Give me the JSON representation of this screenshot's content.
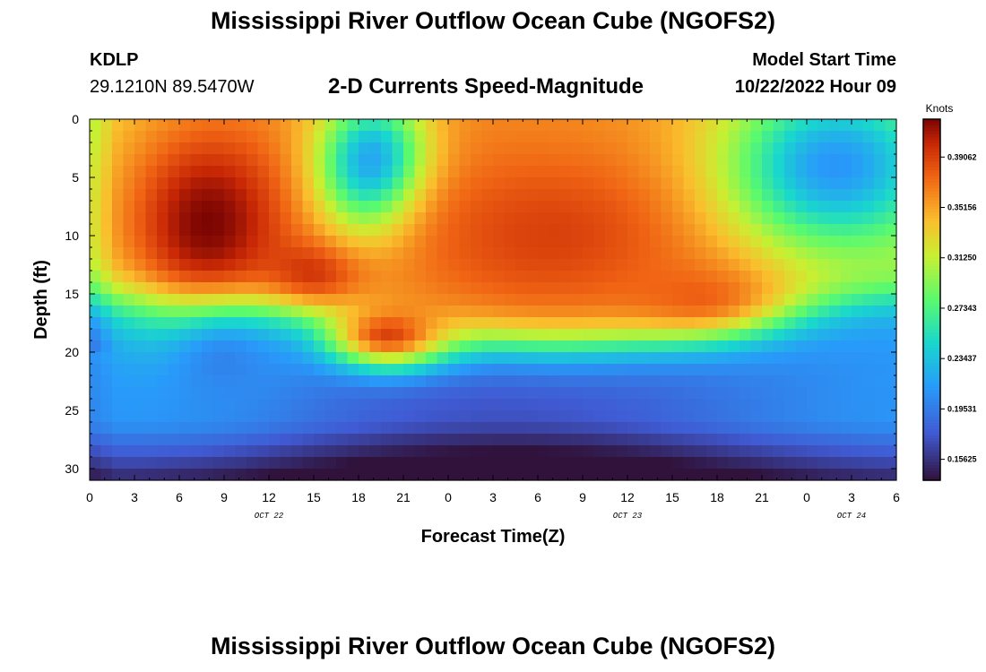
{
  "header": {
    "title": "Mississippi River Outflow Ocean Cube (NGOFS2)",
    "station": "KDLP",
    "coords": "29.1210N  89.5470W",
    "subtitle": "2-D Currents Speed-Magnitude",
    "start_label": "Model Start Time",
    "start_time": "10/22/2022 Hour 09"
  },
  "footer": {
    "title": "Mississippi River Outflow Ocean Cube (NGOFS2)"
  },
  "chart_data": {
    "type": "heatmap",
    "title": "2-D Currents Speed-Magnitude",
    "xlabel": "Forecast Time(Z)",
    "ylabel": "Depth (ft)",
    "x_range_hours": [
      0,
      54
    ],
    "y_range_ft": [
      0,
      31
    ],
    "x_tick_labels": [
      "0",
      "3",
      "6",
      "9",
      "12",
      "15",
      "18",
      "21",
      "0",
      "3",
      "6",
      "9",
      "12",
      "15",
      "18",
      "21",
      "0",
      "3",
      "6"
    ],
    "x_tick_hours": [
      0,
      3,
      6,
      9,
      12,
      15,
      18,
      21,
      24,
      27,
      30,
      33,
      36,
      39,
      42,
      45,
      48,
      51,
      54
    ],
    "day_labels": [
      {
        "text": "OCT 22",
        "hour": 12
      },
      {
        "text": "OCT 23",
        "hour": 36
      },
      {
        "text": "OCT 24",
        "hour": 51
      }
    ],
    "y_tick_labels": [
      "0",
      "5",
      "10",
      "15",
      "20",
      "25",
      "30"
    ],
    "y_tick_values": [
      0,
      5,
      10,
      15,
      20,
      25,
      30
    ],
    "colorbar": {
      "unit": "Knots",
      "min": 0.14,
      "max": 0.42,
      "tick_labels": [
        "0.39062",
        "0.35156",
        "0.31250",
        "0.27343",
        "0.23437",
        "0.19531",
        "0.15625"
      ],
      "tick_values": [
        0.39062,
        0.35156,
        0.3125,
        0.27343,
        0.23437,
        0.19531,
        0.15625
      ]
    },
    "features": [
      {
        "hour": 8,
        "depth": 9,
        "speed": 0.42,
        "sx": 4,
        "sy": 6
      },
      {
        "hour": 15,
        "depth": 13,
        "speed": 0.4,
        "sx": 2.5,
        "sy": 2
      },
      {
        "hour": 20,
        "depth": 18.5,
        "speed": 0.39,
        "sx": 3,
        "sy": 2
      },
      {
        "hour": 19,
        "depth": 4,
        "speed": 0.2,
        "sx": 2.5,
        "sy": 4
      },
      {
        "hour": 31,
        "depth": 10,
        "speed": 0.39,
        "sx": 7,
        "sy": 5
      },
      {
        "hour": 41,
        "depth": 15,
        "speed": 0.38,
        "sx": 4,
        "sy": 2.5
      },
      {
        "hour": 50,
        "depth": 4,
        "speed": 0.21,
        "sx": 5,
        "sy": 5
      },
      {
        "hour": 9,
        "depth": 21,
        "speed": 0.2,
        "sx": 3,
        "sy": 3
      }
    ]
  }
}
